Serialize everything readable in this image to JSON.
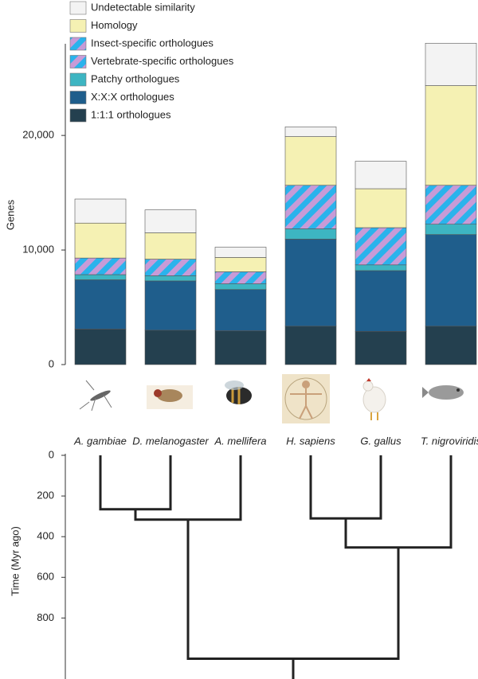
{
  "chart_data": [
    {
      "type": "stacked_bar",
      "y_label": "Genes",
      "categories": [
        "A. gambiae",
        "D. melanogaster",
        "A. mellifera",
        "H. sapiens",
        "G. gallus",
        "T. nigroviridis"
      ],
      "series": [
        {
          "name": "1:1:1 orthologues",
          "color": "#24404f",
          "values": [
            3100,
            3000,
            2950,
            3350,
            2900,
            3350
          ]
        },
        {
          "name": "X:X:X orthologues",
          "color": "#1f5e8c",
          "values": [
            4300,
            4300,
            3600,
            7600,
            5300,
            8000
          ]
        },
        {
          "name": "Patchy orthologues",
          "color": "#3db5c2",
          "values": [
            450,
            450,
            500,
            900,
            500,
            900
          ]
        },
        {
          "name": "Vertebrate-specific orthologues",
          "color": "#2ab3ec",
          "stripe_color": "#c79bd7",
          "values": [
            0,
            0,
            0,
            3800,
            3250,
            3400
          ]
        },
        {
          "name": "Insect-specific orthologues",
          "color": "#c79bd7",
          "stripe_color": "#2ab3ec",
          "values": [
            1450,
            1450,
            1050,
            0,
            0,
            0
          ]
        },
        {
          "name": "Homology",
          "color": "#f5f1b3",
          "values": [
            3050,
            2300,
            1250,
            4250,
            3400,
            8700
          ]
        },
        {
          "name": "Undetectable similarity",
          "color": "#f3f3f3",
          "values": [
            2100,
            2000,
            900,
            850,
            2400,
            3700
          ]
        }
      ],
      "ylim": [
        0,
        28000
      ],
      "yticks": [
        0,
        {
          "value": 10000,
          "label": "10,000"
        },
        {
          "value": 20000,
          "label": "20,000"
        }
      ]
    },
    {
      "type": "dendrogram",
      "y_label": "Time (Myr ago)",
      "leaves": [
        0,
        1,
        2,
        3,
        4,
        5
      ],
      "merges": [
        {
          "children": [
            0,
            1
          ],
          "time": 265
        },
        {
          "children": [
            6,
            2
          ],
          "time": 316
        },
        {
          "children": [
            3,
            4
          ],
          "time": 310
        },
        {
          "children": [
            8,
            5
          ],
          "time": 453
        },
        {
          "children": [
            7,
            9
          ],
          "time": 1000
        }
      ],
      "ylim": [
        0,
        1100
      ],
      "yticks": [
        0,
        200,
        400,
        600,
        800
      ]
    }
  ]
}
